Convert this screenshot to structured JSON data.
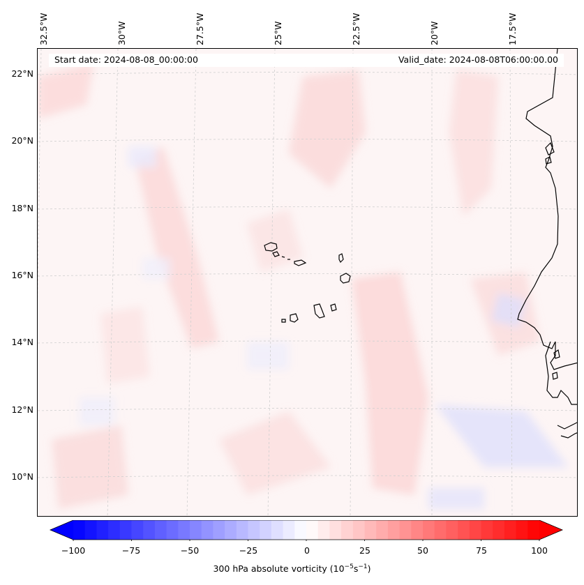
{
  "map": {
    "lon_labels": [
      "32.5°W",
      "30°W",
      "27.5°W",
      "25°W",
      "22.5°W",
      "20°W",
      "17.5°W"
    ],
    "lat_labels": [
      "22°N",
      "20°N",
      "18°N",
      "16°N",
      "14°N",
      "12°N",
      "10°N"
    ],
    "start_date": "Start date: 2024-08-08_00:00:00",
    "valid_date": "Valid_date: 2024-08-08T06:00:00.00",
    "field": "300 hPa absolute vorticity",
    "coastline_color": "#000000",
    "gridline_color": "#c8c8c8"
  },
  "colorbar": {
    "label_prefix": "300 hPa absolute vorticity (10",
    "label_exp1": "−5",
    "label_mid": "s",
    "label_exp2": "−1",
    "label_suffix": ")",
    "ticks": [
      "−100",
      "−75",
      "−50",
      "−25",
      "0",
      "25",
      "50",
      "75",
      "100"
    ],
    "vmin": -100,
    "vmax": 100,
    "colormap": "bwr",
    "extend": "both"
  }
}
